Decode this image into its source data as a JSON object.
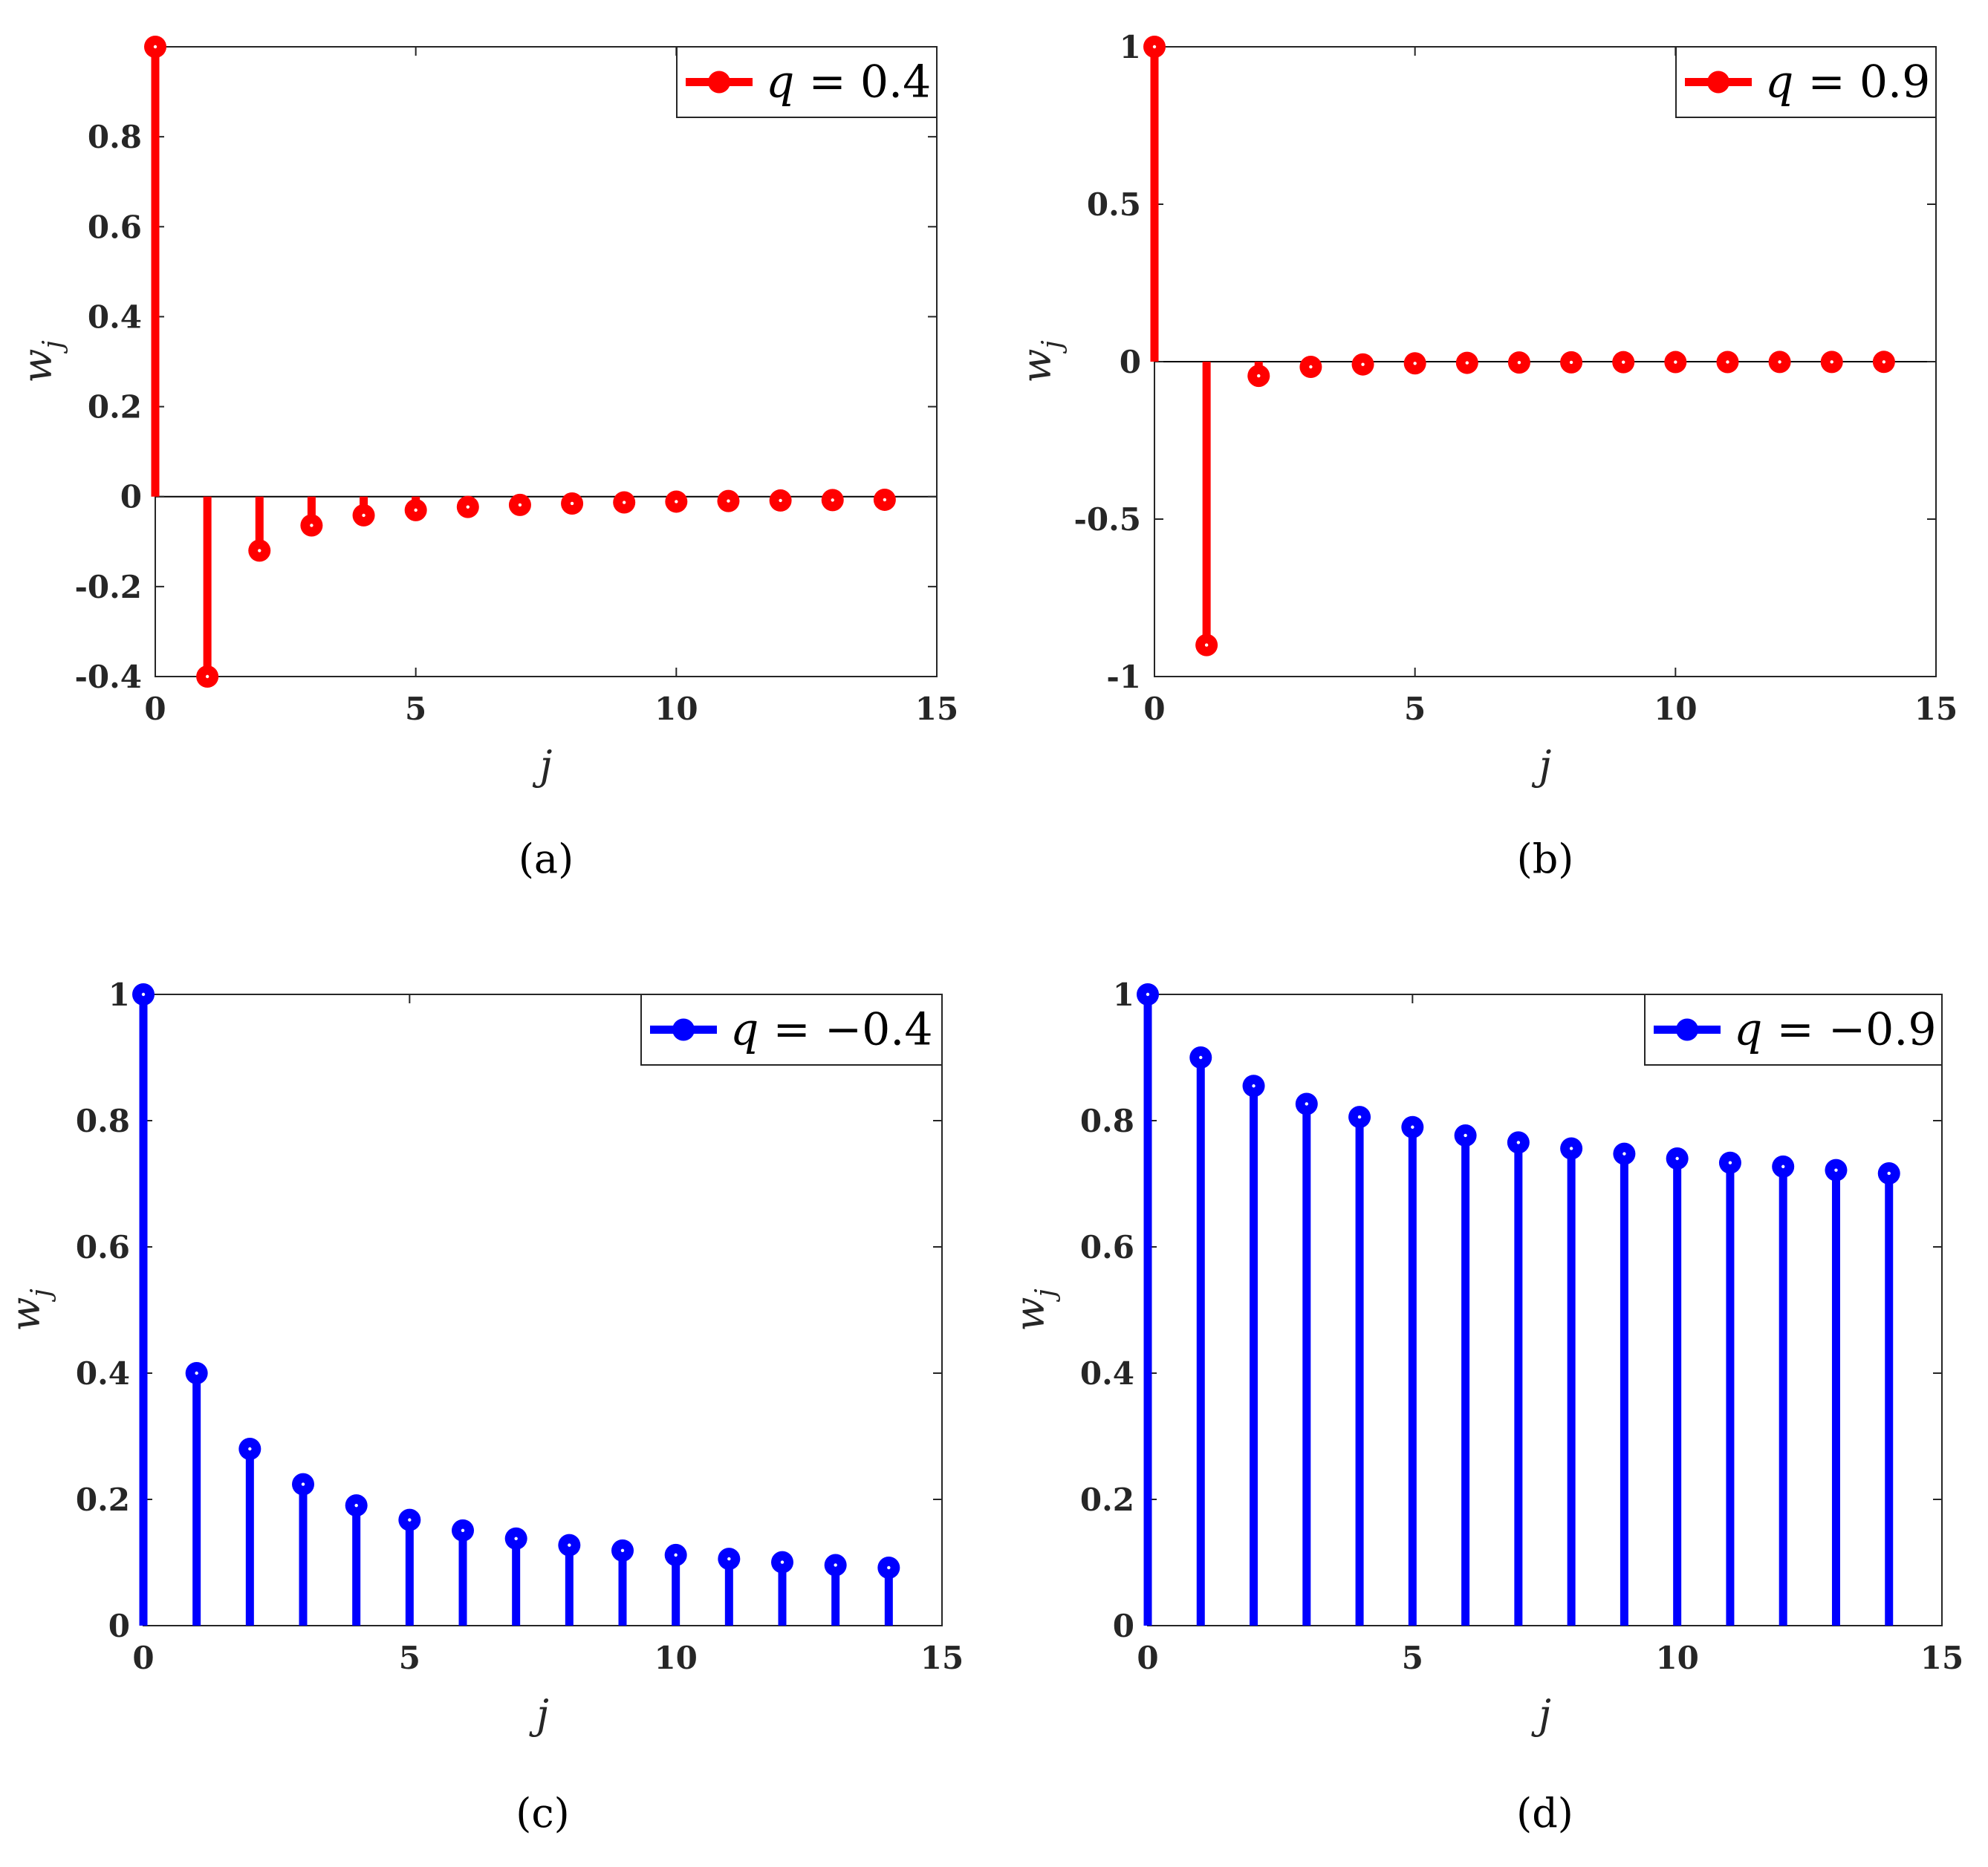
{
  "chart_data": [
    {
      "type": "stem",
      "panel_label": "(a)",
      "legend": {
        "var": "q",
        "eq": " = ",
        "value": "0.4"
      },
      "color": "#ff0000",
      "xlabel": "j",
      "ylabel": {
        "base": "w",
        "sub": "j"
      },
      "xlim": [
        0,
        15
      ],
      "ylim": [
        -0.4,
        1
      ],
      "xticks": [
        "0",
        "5",
        "10",
        "15"
      ],
      "yticks": [
        "-0.4",
        "-0.2",
        "0",
        "0.2",
        "0.4",
        "0.6",
        "0.8"
      ],
      "x": [
        0,
        1,
        2,
        3,
        4,
        5,
        6,
        7,
        8,
        9,
        10,
        11,
        12,
        13,
        14
      ],
      "values": [
        1,
        -0.4,
        -0.12,
        -0.064,
        -0.0416,
        -0.03,
        -0.023,
        -0.0185,
        -0.0153,
        -0.0129,
        -0.0111,
        -0.0097,
        -0.0086,
        -0.0077,
        -0.007
      ]
    },
    {
      "type": "stem",
      "panel_label": "(b)",
      "legend": {
        "var": "q",
        "eq": " = ",
        "value": "0.9"
      },
      "color": "#ff0000",
      "xlabel": "j",
      "ylabel": {
        "base": "w",
        "sub": "j"
      },
      "xlim": [
        0,
        15
      ],
      "ylim": [
        -1,
        1
      ],
      "xticks": [
        "0",
        "5",
        "10",
        "15"
      ],
      "yticks": [
        "-1",
        "-0.5",
        "0",
        "0.5",
        "1"
      ],
      "x": [
        0,
        1,
        2,
        3,
        4,
        5,
        6,
        7,
        8,
        9,
        10,
        11,
        12,
        13,
        14
      ],
      "values": [
        1,
        -0.9,
        -0.045,
        -0.0165,
        -0.0087,
        -0.0054,
        -0.0037,
        -0.0027,
        -0.0021,
        -0.0016,
        -0.0013,
        -0.0011,
        -0.0009,
        -0.0008,
        -0.0007
      ]
    },
    {
      "type": "stem",
      "panel_label": "(c)",
      "legend": {
        "var": "q",
        "eq": " = −",
        "value": "0.4"
      },
      "color": "#0000ff",
      "xlabel": "j",
      "ylabel": {
        "base": "w",
        "sub": "j"
      },
      "xlim": [
        0,
        15
      ],
      "ylim": [
        0,
        1
      ],
      "xticks": [
        "0",
        "5",
        "10",
        "15"
      ],
      "yticks": [
        "0",
        "0.2",
        "0.4",
        "0.6",
        "0.8",
        "1"
      ],
      "x": [
        0,
        1,
        2,
        3,
        4,
        5,
        6,
        7,
        8,
        9,
        10,
        11,
        12,
        13,
        14
      ],
      "values": [
        1,
        0.4,
        0.28,
        0.224,
        0.1904,
        0.1675,
        0.1508,
        0.1379,
        0.1275,
        0.119,
        0.1119,
        0.1058,
        0.1005,
        0.0959,
        0.0918
      ]
    },
    {
      "type": "stem",
      "panel_label": "(d)",
      "legend": {
        "var": "q",
        "eq": " = −",
        "value": "0.9"
      },
      "color": "#0000ff",
      "xlabel": "j",
      "ylabel": {
        "base": "w",
        "sub": "j"
      },
      "xlim": [
        0,
        15
      ],
      "ylim": [
        0,
        1
      ],
      "xticks": [
        "0",
        "5",
        "10",
        "15"
      ],
      "yticks": [
        "0",
        "0.2",
        "0.4",
        "0.6",
        "0.8",
        "1"
      ],
      "x": [
        0,
        1,
        2,
        3,
        4,
        5,
        6,
        7,
        8,
        9,
        10,
        11,
        12,
        13,
        14
      ],
      "values": [
        1,
        0.9,
        0.855,
        0.8265,
        0.8058,
        0.7897,
        0.7765,
        0.7654,
        0.7559,
        0.7475,
        0.74,
        0.7333,
        0.7272,
        0.7216,
        0.7165
      ]
    }
  ]
}
